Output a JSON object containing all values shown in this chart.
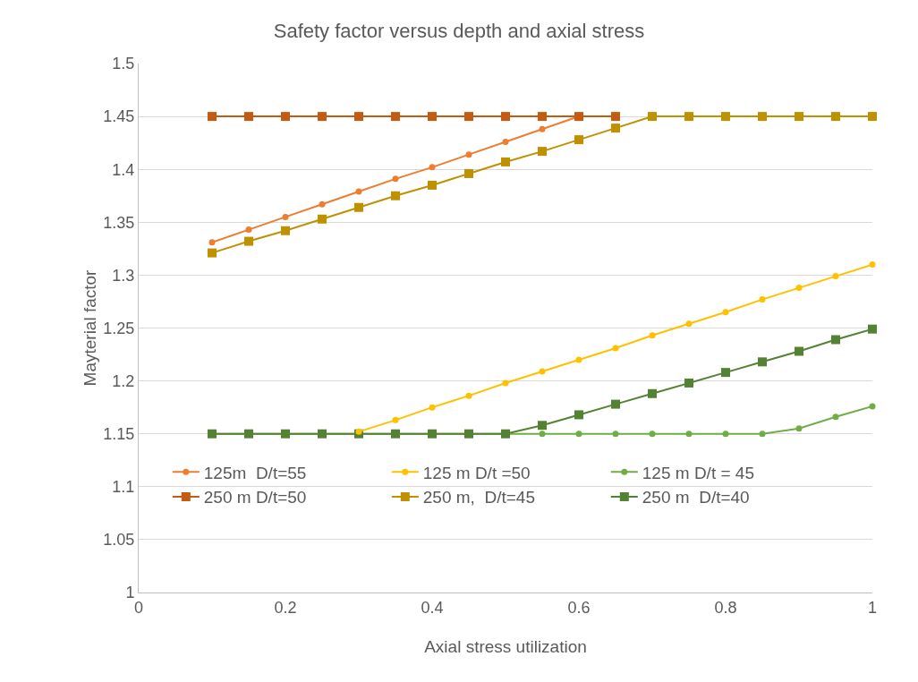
{
  "chart_data": {
    "type": "line",
    "title": "Safety factor versus depth and axial stress",
    "xlabel": "Axial stress utilization",
    "ylabel": "Mayterial factor",
    "x": [
      0.1,
      0.15,
      0.2,
      0.25,
      0.3,
      0.35,
      0.4,
      0.45,
      0.5,
      0.55,
      0.6,
      0.65,
      0.7,
      0.75,
      0.8,
      0.85,
      0.9,
      0.95,
      1
    ],
    "series": [
      {
        "name": "125m  D/t=55",
        "color": "#ed7d31",
        "marker": "circle",
        "values": [
          1.331,
          1.343,
          1.355,
          1.367,
          1.379,
          1.391,
          1.402,
          1.414,
          1.426,
          1.438,
          1.45,
          1.45,
          null,
          null,
          null,
          null,
          null,
          null,
          null
        ]
      },
      {
        "name": "125 m D/t =50",
        "color": "#ffc000",
        "marker": "circle",
        "values": [
          null,
          null,
          null,
          null,
          1.152,
          1.163,
          1.175,
          1.186,
          1.198,
          1.209,
          1.22,
          1.231,
          1.243,
          1.254,
          1.265,
          1.277,
          1.288,
          1.299,
          1.31
        ]
      },
      {
        "name": "125 m D/t = 45",
        "color": "#70ad47",
        "marker": "circle",
        "values": [
          1.15,
          1.15,
          1.15,
          1.15,
          1.15,
          1.15,
          1.15,
          1.15,
          1.15,
          1.15,
          1.15,
          1.15,
          1.15,
          1.15,
          1.15,
          1.15,
          1.155,
          1.166,
          1.176
        ]
      },
      {
        "name": "250 m D/t=50",
        "color": "#c55a11",
        "marker": "square",
        "values": [
          1.45,
          1.45,
          1.45,
          1.45,
          1.45,
          1.45,
          1.45,
          1.45,
          1.45,
          1.45,
          1.45,
          1.45,
          null,
          null,
          null,
          null,
          null,
          null,
          null
        ]
      },
      {
        "name": "250 m,  D/t=45",
        "color": "#bf9000",
        "marker": "square",
        "values": [
          1.321,
          1.332,
          1.342,
          1.353,
          1.364,
          1.375,
          1.385,
          1.396,
          1.407,
          1.417,
          1.428,
          1.439,
          1.45,
          1.45,
          1.45,
          1.45,
          1.45,
          1.45,
          1.45
        ]
      },
      {
        "name": "250 m  D/t=40",
        "color": "#548235",
        "marker": "square",
        "values": [
          1.15,
          1.15,
          1.15,
          1.15,
          1.15,
          1.15,
          1.15,
          1.15,
          1.15,
          1.158,
          1.168,
          1.178,
          1.188,
          1.198,
          1.208,
          1.218,
          1.228,
          1.239,
          1.249
        ]
      }
    ],
    "xlim": [
      0,
      1
    ],
    "xticks": [
      0,
      0.2,
      0.4,
      0.6,
      0.8,
      1
    ],
    "ylim": [
      1,
      1.5
    ],
    "yticks": [
      1,
      1.05,
      1.1,
      1.15,
      1.2,
      1.25,
      1.3,
      1.35,
      1.4,
      1.45,
      1.5
    ],
    "grid": "y",
    "legend": "bottom",
    "line_style": "solid"
  }
}
